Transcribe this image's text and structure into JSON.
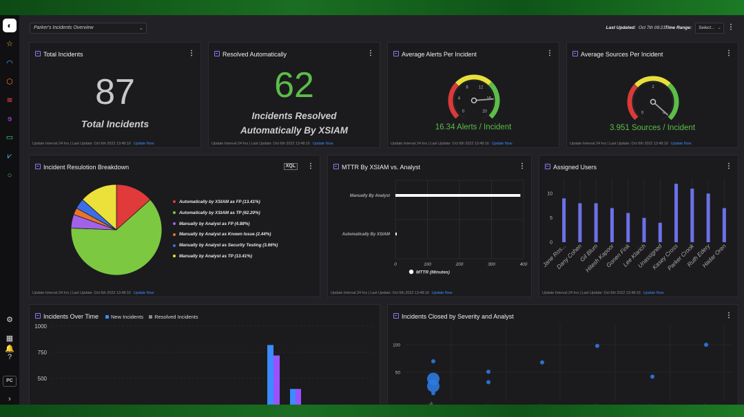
{
  "sidebar": {
    "logo": "◐",
    "icons": [
      {
        "name": "star-icon",
        "glyph": "☆",
        "color": "#f0c030"
      },
      {
        "name": "dashboard-icon",
        "glyph": "◠",
        "color": "#4aa8ff"
      },
      {
        "name": "shield-icon",
        "glyph": "⬡",
        "color": "#ff7a2a"
      },
      {
        "name": "incidents-icon",
        "glyph": "≋",
        "color": "#ff4a4a"
      },
      {
        "name": "investigation-icon",
        "glyph": "ɘ",
        "color": "#c04aff"
      },
      {
        "name": "monitor-icon",
        "glyph": "▭",
        "color": "#3adb7a"
      },
      {
        "name": "analytics-icon",
        "glyph": "⩗",
        "color": "#4ad0ff"
      },
      {
        "name": "status-icon",
        "glyph": "○",
        "color": "#3adb4a"
      },
      {
        "name": "gear-icon",
        "glyph": "⚙",
        "color": "#dddddd"
      },
      {
        "name": "apps-grid-icon",
        "glyph": "▦",
        "color": "#dddddd"
      },
      {
        "name": "notifications-icon",
        "glyph": "🔔",
        "color": "#dddddd"
      },
      {
        "name": "help-icon",
        "glyph": "?",
        "color": "#dddddd"
      },
      {
        "name": "expand-icon",
        "glyph": "›",
        "color": "#dddddd"
      }
    ],
    "user_initials": "PC"
  },
  "header": {
    "dashboard_name": "Parker's Incidents Overview",
    "last_updated_label": "Last Updated:",
    "last_updated_value": "Oct 7th 09:21",
    "time_range_label": "Time Range:",
    "time_range_value": "Select..."
  },
  "footer": {
    "text": "Update Interval 24 hrs | Last Update: Oct 6th 2022 13:48:16",
    "link": "Update Now"
  },
  "total_incidents": {
    "title": "Total Incidents",
    "value": "87",
    "label": "Total Incidents"
  },
  "resolved_auto": {
    "title": "Resolved Automatically",
    "value": "62",
    "label_line1": "Incidents Resolved",
    "label_line2": "Automatically By XSIAM",
    "color": "#5cbd48"
  },
  "avg_alerts": {
    "title": "Average Alerts Per Incident",
    "value_text": "16.34 Alerts / Incident",
    "ticks": [
      "0",
      "4",
      "8",
      "12",
      "16",
      "20"
    ],
    "gauge_value": 16.34,
    "gauge_max": 20
  },
  "avg_sources": {
    "title": "Average Sources Per Incident",
    "value_text": "3.951 Sources / Incident",
    "ticks": [
      "0",
      "2",
      "4"
    ],
    "gauge_value": 3.951,
    "gauge_max": 4
  },
  "breakdown": {
    "title": "Incident Resulotion Breakdown",
    "xql_label": "XQL",
    "chart_data": {
      "type": "pie",
      "slices": [
        {
          "label": "Automatically by XSIAM as FP (13.41%)",
          "value": 13.41,
          "color": "#e03a3a"
        },
        {
          "label": "Automatically by XSIAM as TP (62.20%)",
          "value": 62.2,
          "color": "#7cc840"
        },
        {
          "label": "Manually by Analyst as FP (4.88%)",
          "value": 4.88,
          "color": "#a262e8"
        },
        {
          "label": "Manually by Analyst as Known Issue (2.44%)",
          "value": 2.44,
          "color": "#e8742a"
        },
        {
          "label": "Manually by Analyst as Security Testing (3.66%)",
          "value": 3.66,
          "color": "#3a6ee8"
        },
        {
          "label": "Manually by Analyst as TP (13.41%)",
          "value": 13.41,
          "color": "#ece03a"
        }
      ]
    }
  },
  "mttr": {
    "title": "MTTR By XSIAM vs. Analyst",
    "chart_data": {
      "type": "bar",
      "orientation": "horizontal",
      "categories": [
        "Manually By Analyst",
        "Automatically By XSIAM"
      ],
      "values": [
        390,
        2
      ],
      "xlim": [
        0,
        400
      ],
      "xticks": [
        "0",
        "100",
        "200",
        "300",
        "400"
      ],
      "legend": "MTTR (Minutes)"
    }
  },
  "assigned": {
    "title": "Assigned Users",
    "chart_data": {
      "type": "bar",
      "categories": [
        "Jane Ros...",
        "Dany Cohen",
        "Gil Blum",
        "Hitesh Kapoor",
        "Gonen Fink",
        "Lee Klarich",
        "Unassigned",
        "Kasey Cross",
        "Parker Crook",
        "Ruth Edery",
        "Hadar Oren"
      ],
      "values": [
        9,
        8,
        8,
        7,
        6,
        5,
        4,
        12,
        11,
        10,
        7
      ],
      "ylim": [
        0,
        13
      ],
      "yticks": [
        "0",
        "5",
        "10"
      ],
      "color": "#6a72e8"
    }
  },
  "over_time": {
    "title": "Incidents Over Time",
    "legend_new": "New Incidents",
    "legend_resolved": "Resolved Incidents",
    "chart_data": {
      "type": "bar",
      "series": [
        {
          "name": "New Incidents",
          "color": "#3a8cff",
          "values": [
            820,
            400
          ]
        },
        {
          "name": "Resolved Incidents",
          "color": "#9a52ff",
          "values": [
            720,
            400
          ]
        }
      ],
      "yticks": [
        "1000",
        "750",
        "500"
      ]
    }
  },
  "severity": {
    "title": "Incidents Closed by Severity and Analyst",
    "chart_data": {
      "type": "scatter",
      "yticks": [
        "100",
        "50"
      ],
      "x_labels": [
        "XSIAM",
        "Dany...",
        "Hadar...",
        "Kasey...",
        "Parker...",
        "Ruth..."
      ],
      "points": [
        {
          "x": 0,
          "y": 70,
          "size": 3
        },
        {
          "x": 0,
          "y": 38,
          "size": 9
        },
        {
          "x": 0,
          "y": 25,
          "size": 9
        },
        {
          "x": 0,
          "y": 12,
          "size": 3
        },
        {
          "x": 1,
          "y": 51,
          "size": 3
        },
        {
          "x": 1,
          "y": 32,
          "size": 3
        },
        {
          "x": 2,
          "y": 68,
          "size": 3
        },
        {
          "x": 3,
          "y": 98,
          "size": 3
        },
        {
          "x": 4,
          "y": 42,
          "size": 3
        },
        {
          "x": 5,
          "y": 100,
          "size": 3
        }
      ]
    }
  }
}
